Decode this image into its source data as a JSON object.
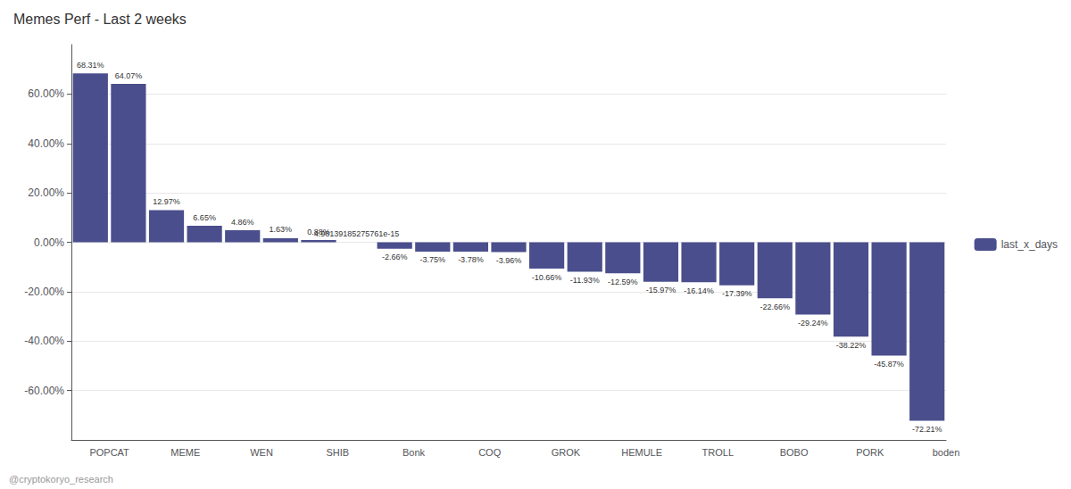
{
  "chart_data": {
    "type": "bar",
    "title": "Memes Perf - Last 2 weeks",
    "categories": [
      "POPCAT",
      null,
      "MEME",
      null,
      "WEN",
      null,
      "SHIB",
      null,
      "Bonk",
      null,
      "COQ",
      null,
      "GROK",
      null,
      "HEMULE",
      null,
      "TROLL",
      null,
      "BOBO",
      null,
      "PORK",
      null,
      "boden"
    ],
    "series": [
      {
        "name": "last_x_days",
        "color": "#4a4e8c",
        "values": [
          68.31,
          64.07,
          12.97,
          6.65,
          4.86,
          1.63,
          0.88,
          4.98139185275761e-15,
          -2.66,
          -3.75,
          -3.78,
          -3.96,
          -10.66,
          -11.93,
          -12.59,
          -15.97,
          -16.14,
          -17.39,
          -22.66,
          -29.24,
          -38.22,
          -45.87,
          -72.21
        ],
        "value_labels": [
          "68.31%",
          "64.07%",
          "12.97%",
          "6.65%",
          "4.86%",
          "1.63%",
          "0.88%",
          "4.98139185275761e-15",
          "-2.66%",
          "-3.75%",
          "-3.78%",
          "-3.96%",
          "-10.66%",
          "-11.93%",
          "-12.59%",
          "-15.97%",
          "-16.14%",
          "-17.39%",
          "-22.66%",
          "-29.24%",
          "-38.22%",
          "-45.87%",
          "-72.21%"
        ]
      }
    ],
    "ylim": [
      -80,
      80
    ],
    "yticks": [
      {
        "value": -60,
        "label": "-60.00%"
      },
      {
        "value": -40,
        "label": "-40.00%"
      },
      {
        "value": -20,
        "label": "-20.00%"
      },
      {
        "value": 0,
        "label": "0.00%"
      },
      {
        "value": 20,
        "label": "20.00%"
      },
      {
        "value": 40,
        "label": "40.00%"
      },
      {
        "value": 60,
        "label": "60.00%"
      }
    ],
    "grid": true,
    "legend": "right",
    "data_labels": true,
    "annotations": [
      "@cryptokoryo_research"
    ]
  }
}
